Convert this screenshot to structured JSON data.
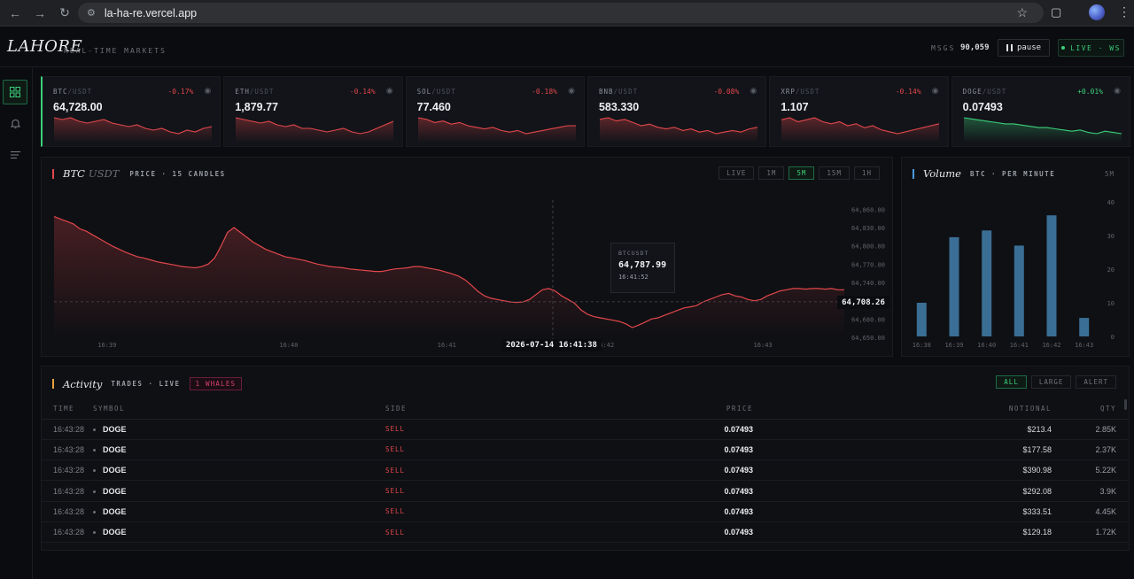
{
  "browser": {
    "url": "la-ha-re.vercel.app"
  },
  "header": {
    "logo": "LAHORE",
    "tagline": "REAL-TIME MARKETS",
    "msgs_label": "MSGS",
    "msgs_value": "90,059",
    "pause_label": "pause",
    "live_label": "LIVE · WS"
  },
  "rail": {
    "items": [
      "grid-icon",
      "bell-icon",
      "list-icon"
    ]
  },
  "tickers": [
    {
      "base": "BTC",
      "quote": "/USDT",
      "change": "-0.17%",
      "price": "64,728.00",
      "dir": "down",
      "spark": [
        22,
        23,
        22,
        24,
        25,
        24,
        23,
        25,
        26,
        27,
        26,
        28,
        29,
        28,
        30,
        31,
        29,
        30,
        28,
        27
      ]
    },
    {
      "base": "ETH",
      "quote": "/USDT",
      "change": "-0.14%",
      "price": "1,879.77",
      "dir": "down",
      "spark": [
        22,
        23,
        24,
        25,
        24,
        26,
        27,
        26,
        28,
        28,
        29,
        30,
        29,
        28,
        30,
        31,
        30,
        28,
        26,
        24
      ]
    },
    {
      "base": "SOL",
      "quote": "/USDT",
      "change": "-0.18%",
      "price": "77.460",
      "dir": "down",
      "spark": [
        21,
        22,
        24,
        23,
        25,
        24,
        26,
        27,
        28,
        27,
        29,
        30,
        29,
        31,
        30,
        29,
        28,
        27,
        26,
        26
      ]
    },
    {
      "base": "BNB",
      "quote": "/USDT",
      "change": "-0.08%",
      "price": "583.330",
      "dir": "down",
      "spark": [
        21,
        20,
        22,
        21,
        23,
        25,
        24,
        26,
        27,
        26,
        28,
        27,
        29,
        28,
        30,
        29,
        28,
        29,
        27,
        26
      ]
    },
    {
      "base": "XRP",
      "quote": "/USDT",
      "change": "-0.14%",
      "price": "1.107",
      "dir": "down",
      "spark": [
        23,
        22,
        24,
        23,
        22,
        24,
        25,
        24,
        26,
        25,
        27,
        26,
        28,
        29,
        30,
        29,
        28,
        27,
        26,
        25
      ]
    },
    {
      "base": "DOGE",
      "quote": "/USDT",
      "change": "+0.01%",
      "price": "0.07493",
      "dir": "up",
      "spark": [
        18,
        19,
        20,
        21,
        22,
        23,
        23,
        24,
        25,
        26,
        26,
        27,
        28,
        29,
        28,
        30,
        31,
        29,
        30,
        31
      ]
    }
  ],
  "colors": {
    "up": "#3ccf7a",
    "down": "#e2474b",
    "volume_bar": "#3a6e94"
  },
  "price_panel": {
    "title_base": "BTC",
    "title_quote": "USDT",
    "subtitle": "PRICE · 15 CANDLES",
    "timeframes": [
      "LIVE",
      "1M",
      "5M",
      "15M",
      "1H"
    ],
    "active_timeframe": "5M",
    "tooltip": {
      "symbol": "BTCUSDT",
      "price": "64,787.99",
      "time": "16:41:52"
    },
    "last_price": "64,708.26",
    "crosshair_time": "2026-07-14 16:41:38"
  },
  "volume_panel": {
    "title": "Volume",
    "subtitle": "BTC · PER MINUTE",
    "timeframe": "5M"
  },
  "activity": {
    "title": "Activity",
    "subtitle": "TRADES · LIVE",
    "whales_label": "1 WHALES",
    "filters": [
      "ALL",
      "LARGE",
      "ALERT"
    ],
    "active_filter": "ALL",
    "columns": [
      "TIME",
      "SYMBOL",
      "SIDE",
      "PRICE",
      "NOTIONAL",
      "QTY"
    ],
    "rows": [
      {
        "time": "16:43:28",
        "symbol": "DOGE",
        "side": "SELL",
        "price": "0.07493",
        "notional": "$213.4",
        "qty": "2.85K"
      },
      {
        "time": "16:43:28",
        "symbol": "DOGE",
        "side": "SELL",
        "price": "0.07493",
        "notional": "$177.58",
        "qty": "2.37K"
      },
      {
        "time": "16:43:28",
        "symbol": "DOGE",
        "side": "SELL",
        "price": "0.07493",
        "notional": "$390.98",
        "qty": "5.22K"
      },
      {
        "time": "16:43:28",
        "symbol": "DOGE",
        "side": "SELL",
        "price": "0.07493",
        "notional": "$292.08",
        "qty": "3.9K"
      },
      {
        "time": "16:43:28",
        "symbol": "DOGE",
        "side": "SELL",
        "price": "0.07493",
        "notional": "$333.51",
        "qty": "4.45K"
      },
      {
        "time": "16:43:28",
        "symbol": "DOGE",
        "side": "SELL",
        "price": "0.07493",
        "notional": "$129.18",
        "qty": "1.72K"
      }
    ]
  },
  "chart_data": [
    {
      "type": "line",
      "title": "BTC/USDT",
      "ylim": [
        64650,
        64875
      ],
      "y_ticks": [
        "64,860.00",
        "64,830.00",
        "64,800.00",
        "64,770.00",
        "64,740.00",
        "64,710.00",
        "64,680.00",
        "64,650.00"
      ],
      "x_ticks": [
        "16:39",
        "16:40",
        "16:41",
        "16:42",
        "16:43"
      ],
      "x_tick_times": [
        0.067,
        0.297,
        0.497,
        0.697,
        0.897
      ],
      "series": [
        {
          "values": [
            64848,
            64844,
            64840,
            64836,
            64828,
            64824,
            64818,
            64812,
            64806,
            64800,
            64795,
            64790,
            64786,
            64782,
            64780,
            64777,
            64774,
            64772,
            64770,
            64768,
            64766,
            64765,
            64764,
            64766,
            64770,
            64780,
            64800,
            64822,
            64830,
            64822,
            64814,
            64806,
            64800,
            64794,
            64790,
            64786,
            64782,
            64780,
            64778,
            64776,
            64773,
            64770,
            64768,
            64766,
            64765,
            64764,
            64762,
            64761,
            64760,
            64759,
            64758,
            64758,
            64760,
            64762,
            64763,
            64764,
            64766,
            64766,
            64764,
            64762,
            64760,
            64757,
            64754,
            64750,
            64744,
            64735,
            64725,
            64718,
            64714,
            64712,
            64710,
            64708,
            64707,
            64708,
            64712,
            64720,
            64728,
            64730,
            64726,
            64718,
            64712,
            64706,
            64695,
            64688,
            64684,
            64682,
            64680,
            64678,
            64676,
            64672,
            64666,
            64670,
            64675,
            64680,
            64682,
            64686,
            64690,
            64694,
            64698,
            64700,
            64702,
            64708,
            64712,
            64716,
            64720,
            64722,
            64718,
            64716,
            64712,
            64710,
            64712,
            64718,
            64722,
            64726,
            64728,
            64730,
            64730,
            64729,
            64730,
            64730,
            64729,
            64730,
            64728,
            64728
          ]
        }
      ]
    },
    {
      "type": "bar",
      "title": "Volume",
      "categories": [
        "16:38",
        "16:39",
        "16:40",
        "16:41",
        "16:42",
        "16:43"
      ],
      "values": [
        10,
        29.5,
        31.5,
        27,
        36,
        5.5
      ],
      "ylim": [
        0,
        40
      ],
      "y_ticks": [
        "40",
        "30",
        "20",
        "10",
        "0"
      ]
    }
  ]
}
